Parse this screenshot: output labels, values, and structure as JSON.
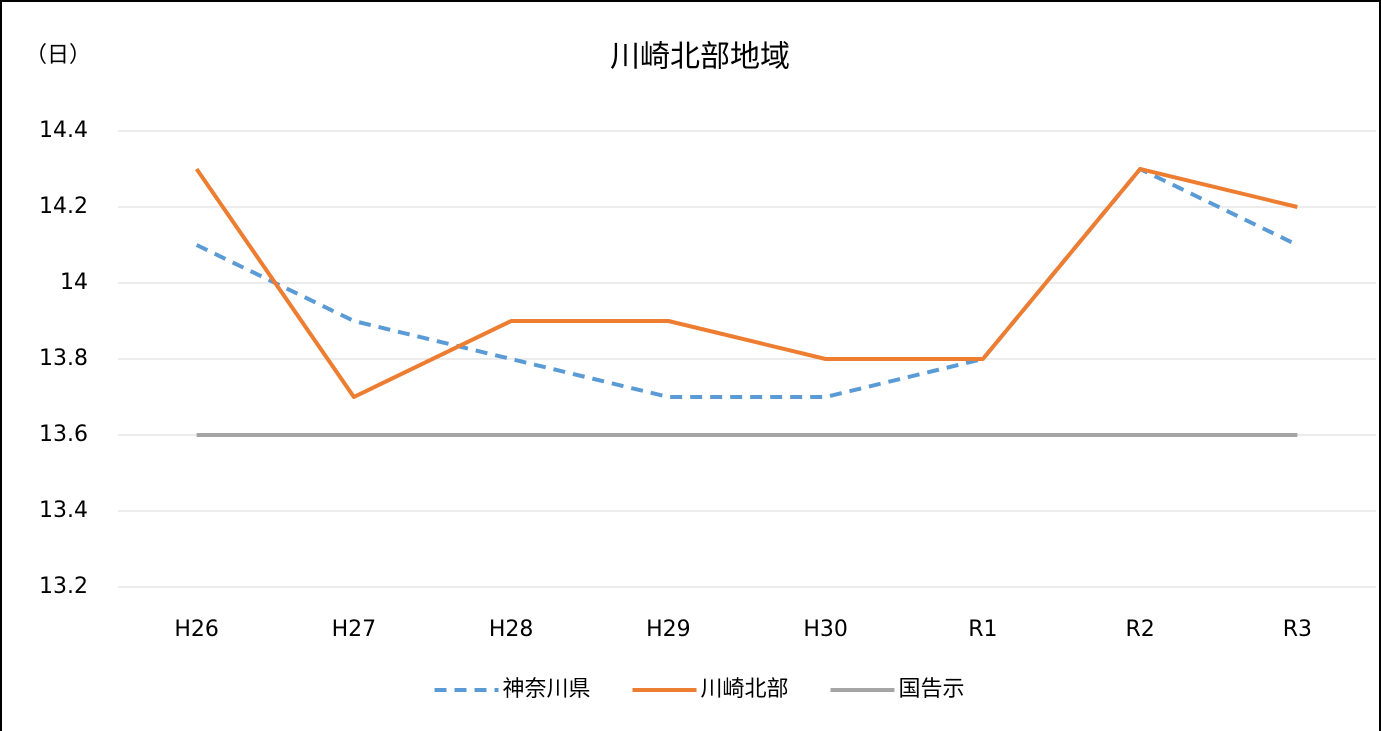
{
  "chart_data": {
    "type": "line",
    "title": "川崎北部地域",
    "y_label": "（日）",
    "categories": [
      "H26",
      "H27",
      "H28",
      "H29",
      "H30",
      "R1",
      "R2",
      "R3"
    ],
    "series": [
      {
        "name": "神奈川県",
        "color": "#5b9bd5",
        "dashed": true,
        "values": [
          14.1,
          13.9,
          13.8,
          13.7,
          13.7,
          13.8,
          14.3,
          14.1
        ]
      },
      {
        "name": "川崎北部",
        "color": "#ed7d31",
        "dashed": false,
        "values": [
          14.3,
          13.7,
          13.9,
          13.9,
          13.8,
          13.8,
          14.3,
          14.2
        ]
      },
      {
        "name": "国告示",
        "color": "#a5a5a5",
        "dashed": false,
        "values": [
          13.6,
          13.6,
          13.6,
          13.6,
          13.6,
          13.6,
          13.6,
          13.6
        ]
      }
    ],
    "ylim": [
      13.2,
      14.4
    ],
    "yticks": [
      13.2,
      13.4,
      13.6,
      13.8,
      14,
      14.2,
      14.4
    ],
    "grid": true,
    "legend": "bottom"
  }
}
